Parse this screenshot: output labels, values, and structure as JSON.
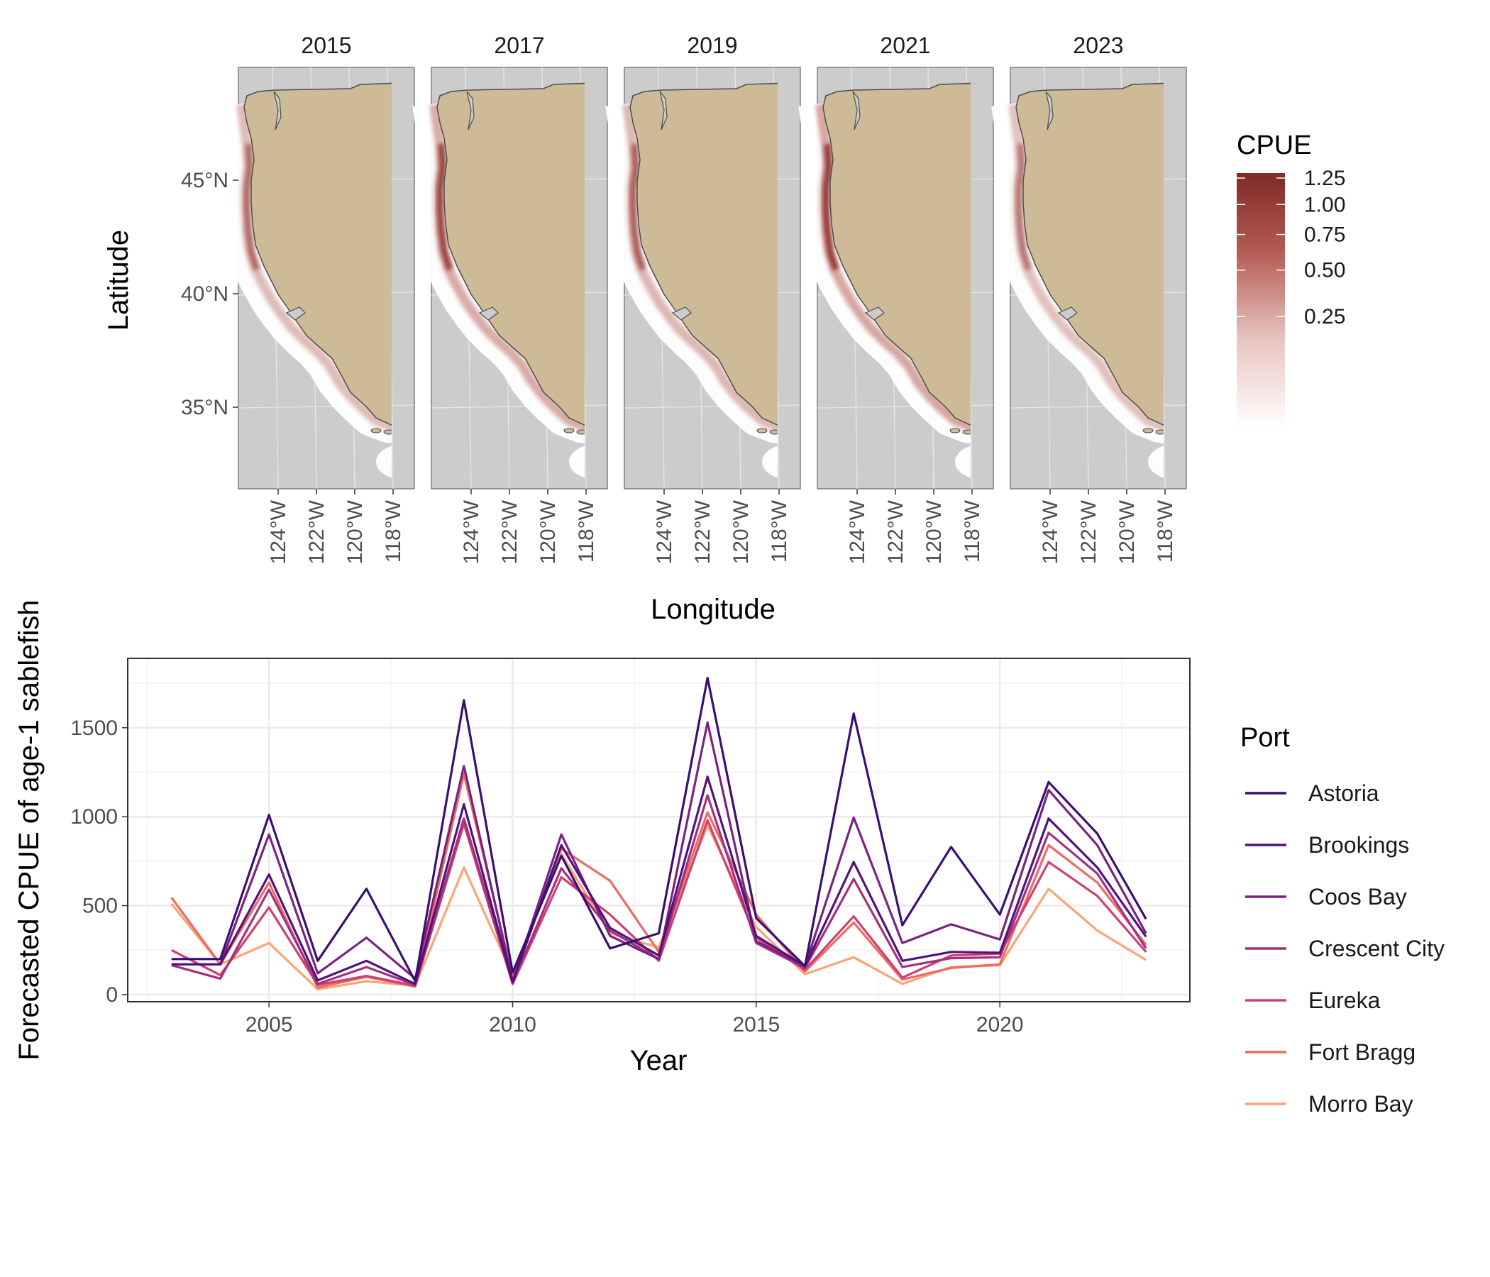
{
  "chart_data": [
    {
      "type": "heatmap",
      "panels": [
        {
          "title": "2015"
        },
        {
          "title": "2017"
        },
        {
          "title": "2019"
        },
        {
          "title": "2021"
        },
        {
          "title": "2023"
        }
      ],
      "panel_intensity": [
        0.55,
        0.9,
        0.65,
        1.0,
        0.45
      ],
      "xlabel": "Longitude",
      "ylabel": "Latitude",
      "x_ticks": [
        "124°W",
        "122°W",
        "120°W",
        "118°W"
      ],
      "y_ticks": [
        "45°N",
        "40°N",
        "35°N"
      ],
      "legend": {
        "title": "CPUE",
        "labels": [
          "1.25",
          "1.00",
          "0.75",
          "0.50",
          "0.25"
        ],
        "range": [
          0,
          1.3
        ],
        "low_color": "#ffffff",
        "high_color": "#7f2a25"
      },
      "colors": {
        "ocean": "#cccccc",
        "land": "#cdba96",
        "grid": "#e6e6e6"
      }
    },
    {
      "type": "line",
      "xlabel": "Year",
      "ylabel": "Forecasted CPUE of age-1 sablefish",
      "x_ticks": [
        "2005",
        "2010",
        "2015",
        "2020"
      ],
      "y_ticks": [
        "0",
        "500",
        "1000",
        "1500"
      ],
      "xlim": [
        2002.1,
        2023.9
      ],
      "ylim": [
        -40,
        1890
      ],
      "grid": true,
      "legend_title": "Port",
      "legend_position": "right",
      "x": [
        2003,
        2004,
        2005,
        2006,
        2007,
        2008,
        2009,
        2010,
        2011,
        2012,
        2013,
        2014,
        2015,
        2016,
        2017,
        2018,
        2019,
        2020,
        2021,
        2022,
        2023
      ],
      "series": [
        {
          "name": "Astoria",
          "color": "#3b0f70",
          "values": [
            200,
            200,
            1010,
            190,
            595,
            75,
            1655,
            125,
            780,
            260,
            345,
            1780,
            430,
            160,
            1580,
            390,
            830,
            450,
            1195,
            905,
            425
          ]
        },
        {
          "name": "Brookings",
          "color": "#51127c",
          "values": [
            170,
            170,
            675,
            80,
            190,
            60,
            1070,
            70,
            840,
            375,
            220,
            1225,
            330,
            160,
            745,
            190,
            240,
            235,
            990,
            715,
            325
          ]
        },
        {
          "name": "Coos Bay",
          "color": "#7a2382",
          "values": [
            170,
            170,
            900,
            120,
            320,
            90,
            1285,
            75,
            900,
            330,
            200,
            1530,
            300,
            160,
            995,
            290,
            395,
            310,
            1150,
            840,
            345
          ]
        },
        {
          "name": "Crescent City",
          "color": "#a3307e",
          "values": [
            165,
            90,
            590,
            60,
            155,
            55,
            990,
            65,
            710,
            360,
            200,
            1120,
            290,
            150,
            650,
            155,
            205,
            210,
            910,
            680,
            260
          ]
        },
        {
          "name": "Eureka",
          "color": "#cf4070",
          "values": [
            250,
            110,
            490,
            55,
            105,
            50,
            960,
            60,
            660,
            450,
            190,
            980,
            320,
            140,
            440,
            95,
            220,
            230,
            745,
            555,
            240
          ]
        },
        {
          "name": "Fort Bragg",
          "color": "#ef6a61",
          "values": [
            545,
            170,
            630,
            40,
            100,
            45,
            1240,
            100,
            820,
            640,
            240,
            1025,
            450,
            130,
            405,
            85,
            150,
            170,
            840,
            630,
            280
          ]
        },
        {
          "name": "Morro Bay",
          "color": "#fca472",
          "values": [
            510,
            170,
            290,
            30,
            75,
            50,
            715,
            110,
            790,
            345,
            265,
            950,
            380,
            115,
            210,
            60,
            155,
            165,
            595,
            360,
            195
          ]
        }
      ]
    }
  ]
}
